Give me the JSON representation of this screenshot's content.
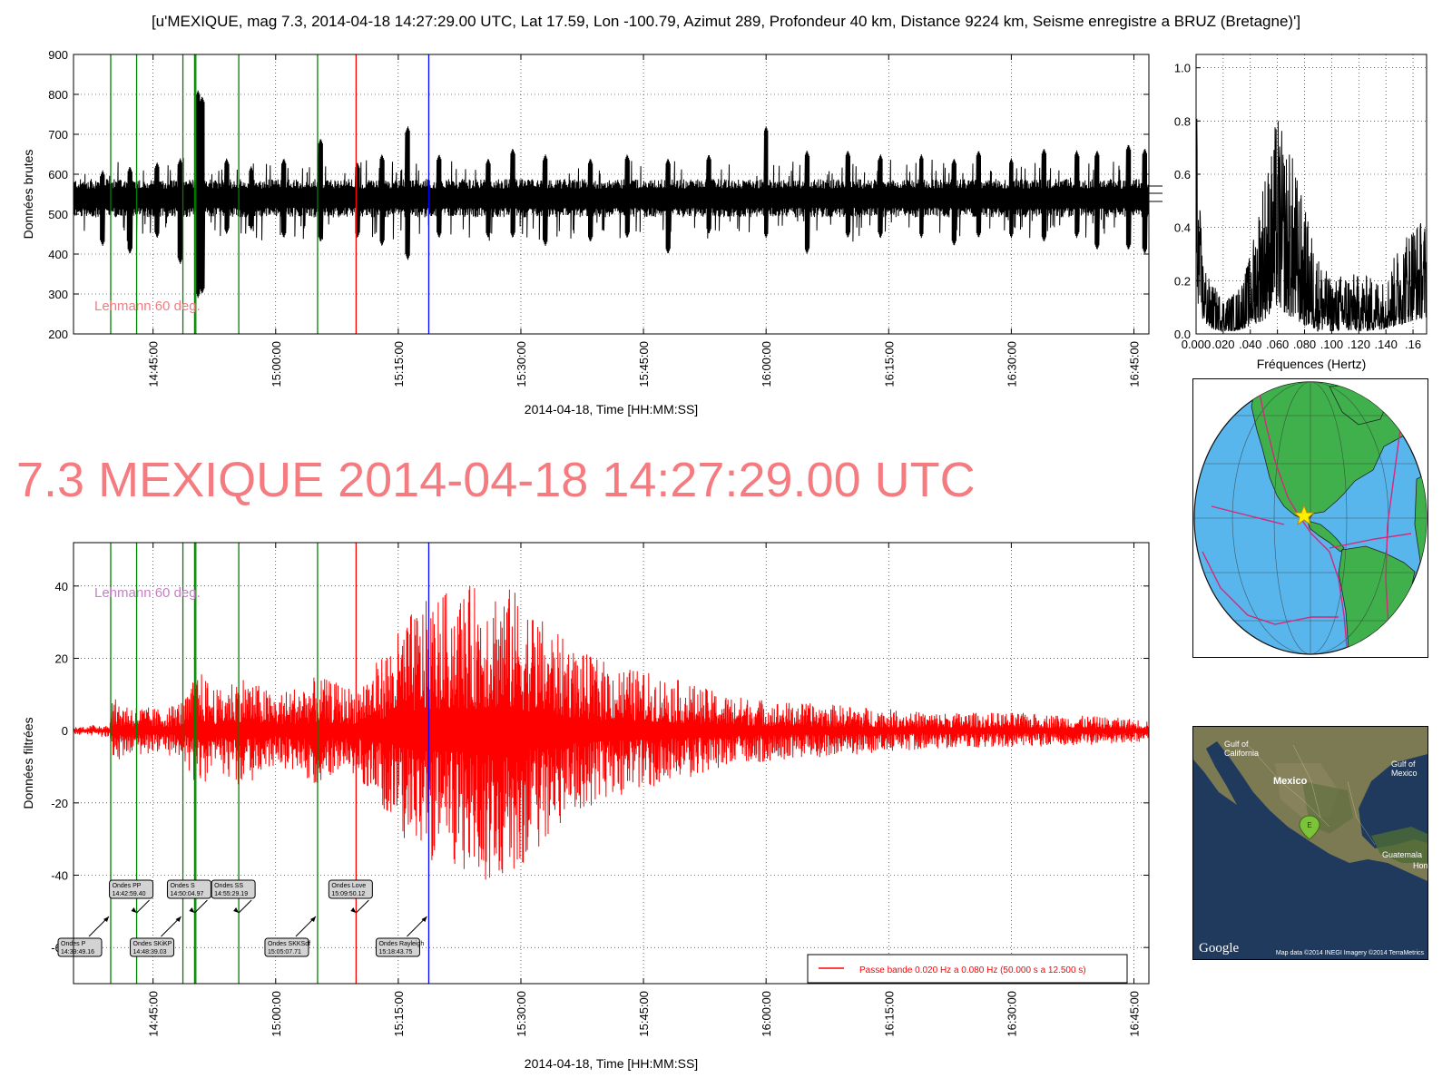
{
  "figure_title": "[u'MEXIQUE, mag 7.3, 2014-04-18 14:27:29.00 UTC, Lat 17.59, Lon -100.79, Azimut 289, Profondeur 40 km, Distance  9224 km, Seisme enregistre a BRUZ (Bretagne)']",
  "big_title": "7.3 MEXIQUE 2014-04-18 14:27:29.00 UTC",
  "colors": {
    "raw": "#000000",
    "filtered": "#ff0000",
    "green_lines": "#008000",
    "red_line": "#ff0000",
    "blue_line": "#0000ff",
    "lehmann_top": "#f47c80",
    "lehmann_bottom": "#c77fc7",
    "big_title": "#f47c80"
  },
  "chart_data": [
    {
      "id": "raw",
      "type": "line",
      "ylabel": "Données brutes",
      "xlabel": "2014-04-18, Time [HH:MM:SS]",
      "xlim": [
        "14:35:16",
        "16:46:50"
      ],
      "ylim": [
        200,
        900
      ],
      "yticks": [
        200,
        300,
        400,
        500,
        600,
        700,
        800,
        900
      ],
      "xticks": [
        "14:45:00",
        "15:00:00",
        "15:15:00",
        "15:30:00",
        "15:45:00",
        "16:00:00",
        "16:15:00",
        "16:30:00",
        "16:45:00"
      ],
      "grid": true,
      "baseline": 540,
      "noise_amplitude": 40,
      "spikes": [
        {
          "t": "14:38:50",
          "min": 420,
          "max": 610
        },
        {
          "t": "14:42:10",
          "min": 400,
          "max": 620
        },
        {
          "t": "14:45:30",
          "min": 440,
          "max": 630
        },
        {
          "t": "14:48:20",
          "min": 375,
          "max": 640
        },
        {
          "t": "14:50:30",
          "min": 290,
          "max": 810
        },
        {
          "t": "14:51:00",
          "min": 300,
          "max": 795
        },
        {
          "t": "14:54:00",
          "min": 450,
          "max": 640
        },
        {
          "t": "14:57:00",
          "min": 460,
          "max": 620
        },
        {
          "t": "15:01:00",
          "min": 440,
          "max": 640
        },
        {
          "t": "15:05:30",
          "min": 430,
          "max": 690
        },
        {
          "t": "15:10:00",
          "min": 440,
          "max": 630
        },
        {
          "t": "15:13:00",
          "min": 420,
          "max": 650
        },
        {
          "t": "15:16:10",
          "min": 385,
          "max": 720
        },
        {
          "t": "15:20:00",
          "min": 440,
          "max": 650
        },
        {
          "t": "15:26:00",
          "min": 440,
          "max": 640
        },
        {
          "t": "15:29:00",
          "min": 440,
          "max": 665
        },
        {
          "t": "15:33:00",
          "min": 420,
          "max": 650
        },
        {
          "t": "15:38:30",
          "min": 430,
          "max": 640
        },
        {
          "t": "15:43:00",
          "min": 440,
          "max": 650
        },
        {
          "t": "15:48:00",
          "min": 400,
          "max": 640
        },
        {
          "t": "15:53:00",
          "min": 450,
          "max": 650
        },
        {
          "t": "16:00:00",
          "min": 440,
          "max": 720
        },
        {
          "t": "16:05:00",
          "min": 400,
          "max": 660
        },
        {
          "t": "16:10:00",
          "min": 440,
          "max": 660
        },
        {
          "t": "16:14:00",
          "min": 440,
          "max": 650
        },
        {
          "t": "16:19:00",
          "min": 440,
          "max": 650
        },
        {
          "t": "16:23:00",
          "min": 420,
          "max": 640
        },
        {
          "t": "16:26:00",
          "min": 440,
          "max": 660
        },
        {
          "t": "16:30:00",
          "min": 440,
          "max": 640
        },
        {
          "t": "16:34:00",
          "min": 430,
          "max": 665
        },
        {
          "t": "16:38:00",
          "min": 440,
          "max": 660
        },
        {
          "t": "16:40:30",
          "min": 410,
          "max": 660
        },
        {
          "t": "16:44:20",
          "min": 410,
          "max": 675
        },
        {
          "t": "16:46:20",
          "min": 400,
          "max": 665
        }
      ],
      "annotation": "Lehmann 60 deg."
    },
    {
      "id": "spectrum",
      "type": "line",
      "xlabel": "Fréquences (Hertz)",
      "xlim": [
        0.0,
        0.17
      ],
      "ylim": [
        0.0,
        1.05
      ],
      "yticks": [
        "0.0",
        "0.2",
        "0.4",
        "0.6",
        "0.8",
        "1.0"
      ],
      "xticks": [
        "0.000",
        ".020",
        ".040",
        ".060",
        ".080",
        ".100",
        ".120",
        ".140",
        ".16"
      ],
      "grid": true,
      "envelope": [
        {
          "f": 0.0,
          "lo": 0.15,
          "hi": 1.0
        },
        {
          "f": 0.002,
          "lo": 0.1,
          "hi": 0.55
        },
        {
          "f": 0.005,
          "lo": 0.05,
          "hi": 0.3
        },
        {
          "f": 0.01,
          "lo": 0.02,
          "hi": 0.2
        },
        {
          "f": 0.02,
          "lo": 0.01,
          "hi": 0.14
        },
        {
          "f": 0.03,
          "lo": 0.01,
          "hi": 0.16
        },
        {
          "f": 0.04,
          "lo": 0.03,
          "hi": 0.3
        },
        {
          "f": 0.05,
          "lo": 0.05,
          "hi": 0.62
        },
        {
          "f": 0.055,
          "lo": 0.08,
          "hi": 0.68
        },
        {
          "f": 0.06,
          "lo": 0.1,
          "hi": 0.85
        },
        {
          "f": 0.065,
          "lo": 0.08,
          "hi": 0.72
        },
        {
          "f": 0.07,
          "lo": 0.06,
          "hi": 0.7
        },
        {
          "f": 0.08,
          "lo": 0.03,
          "hi": 0.48
        },
        {
          "f": 0.09,
          "lo": 0.01,
          "hi": 0.3
        },
        {
          "f": 0.1,
          "lo": 0.01,
          "hi": 0.2
        },
        {
          "f": 0.11,
          "lo": 0.01,
          "hi": 0.24
        },
        {
          "f": 0.12,
          "lo": 0.01,
          "hi": 0.22
        },
        {
          "f": 0.13,
          "lo": 0.01,
          "hi": 0.22
        },
        {
          "f": 0.14,
          "lo": 0.02,
          "hi": 0.2
        },
        {
          "f": 0.15,
          "lo": 0.03,
          "hi": 0.35
        },
        {
          "f": 0.16,
          "lo": 0.05,
          "hi": 0.44
        },
        {
          "f": 0.17,
          "lo": 0.06,
          "hi": 0.43
        }
      ]
    },
    {
      "id": "filtered",
      "type": "line",
      "ylabel": "Données filtrées",
      "xlabel": "2014-04-18, Time [HH:MM:SS]",
      "xlim": [
        "14:35:16",
        "16:46:50"
      ],
      "ylim": [
        -70,
        52
      ],
      "yticks": [
        -60,
        -40,
        -20,
        0,
        20,
        40
      ],
      "xticks": [
        "14:45:00",
        "15:00:00",
        "15:15:00",
        "15:30:00",
        "15:45:00",
        "16:00:00",
        "16:15:00",
        "16:30:00",
        "16:45:00"
      ],
      "grid": true,
      "envelope": [
        {
          "t": "14:35:16",
          "a": 1
        },
        {
          "t": "14:39:40",
          "a": 2
        },
        {
          "t": "14:39:55",
          "a": 9
        },
        {
          "t": "14:43:00",
          "a": 7
        },
        {
          "t": "14:46:00",
          "a": 6
        },
        {
          "t": "14:49:00",
          "a": 9
        },
        {
          "t": "14:50:30",
          "a": 17
        },
        {
          "t": "14:53:00",
          "a": 11
        },
        {
          "t": "14:55:30",
          "a": 16
        },
        {
          "t": "15:00:00",
          "a": 10
        },
        {
          "t": "15:05:00",
          "a": 15
        },
        {
          "t": "15:09:30",
          "a": 12
        },
        {
          "t": "15:12:00",
          "a": 18
        },
        {
          "t": "15:14:30",
          "a": 26
        },
        {
          "t": "15:17:00",
          "a": 34
        },
        {
          "t": "15:20:00",
          "a": 38
        },
        {
          "t": "15:23:30",
          "a": 40
        },
        {
          "t": "15:27:00",
          "a": 42
        },
        {
          "t": "15:30:00",
          "a": 38
        },
        {
          "t": "15:33:00",
          "a": 30
        },
        {
          "t": "15:37:00",
          "a": 22
        },
        {
          "t": "15:42:00",
          "a": 18
        },
        {
          "t": "15:48:00",
          "a": 15
        },
        {
          "t": "15:55:00",
          "a": 10
        },
        {
          "t": "16:02:00",
          "a": 8
        },
        {
          "t": "16:10:00",
          "a": 7
        },
        {
          "t": "16:20:00",
          "a": 5
        },
        {
          "t": "16:30:00",
          "a": 5
        },
        {
          "t": "16:40:00",
          "a": 4
        },
        {
          "t": "16:46:50",
          "a": 3
        }
      ],
      "annotation": "Lehmann 60 deg.",
      "legend": {
        "label": "Passe bande 0.020 Hz a 0.080 Hz (50.000 s a 12.500 s)",
        "placement": "lower-right"
      }
    }
  ],
  "phase_lines": [
    {
      "t": "14:39:49.16",
      "color": "green"
    },
    {
      "t": "14:42:59.40",
      "color": "green"
    },
    {
      "t": "14:48:39.03",
      "color": "green"
    },
    {
      "t": "14:50:04.97",
      "color": "green"
    },
    {
      "t": "14:50:14.00",
      "color": "green"
    },
    {
      "t": "14:55:29.19",
      "color": "green"
    },
    {
      "t": "15:05:07.71",
      "color": "green"
    },
    {
      "t": "15:09:50.12",
      "color": "red"
    },
    {
      "t": "15:18:43.75",
      "color": "blue"
    }
  ],
  "phase_labels": [
    {
      "name": "Ondes P",
      "time": "14:39:49.16",
      "row": "low",
      "t": "14:39:49.16"
    },
    {
      "name": "Ondes PP",
      "time": "14:42:59.40",
      "row": "high",
      "t": "14:42:59.40"
    },
    {
      "name": "Ondes SKiKP",
      "time": "14:48:39.03",
      "row": "low",
      "t": "14:48:39.03"
    },
    {
      "name": "Ondes S",
      "time": "14:50:04.97",
      "row": "high",
      "t": "14:50:04.97"
    },
    {
      "name": "Ondes SS",
      "time": "14:55:29.19",
      "row": "high",
      "t": "14:55:29.19"
    },
    {
      "name": "Ondes SKKSdf",
      "time": "15:05:07.71",
      "row": "low",
      "t": "15:05:07.71"
    },
    {
      "name": "Ondes Love",
      "time": "15:09:50.12",
      "row": "high",
      "t": "15:09:50.12"
    },
    {
      "name": "Ondes Rayleigh",
      "time": "15:18:43.75",
      "row": "low",
      "t": "15:18:43.75"
    }
  ],
  "map_labels": {
    "gulf_california": "Gulf of\nCalifornia",
    "mexico": "Mexico",
    "gulf_mexico": "Gulf of\nMexico",
    "guatemala": "Guatemala",
    "honduras": "Hon",
    "marker": "E",
    "google": "Google",
    "credits": "Map data ©2014 INEGI  Imagery ©2014 TerraMetrics"
  }
}
